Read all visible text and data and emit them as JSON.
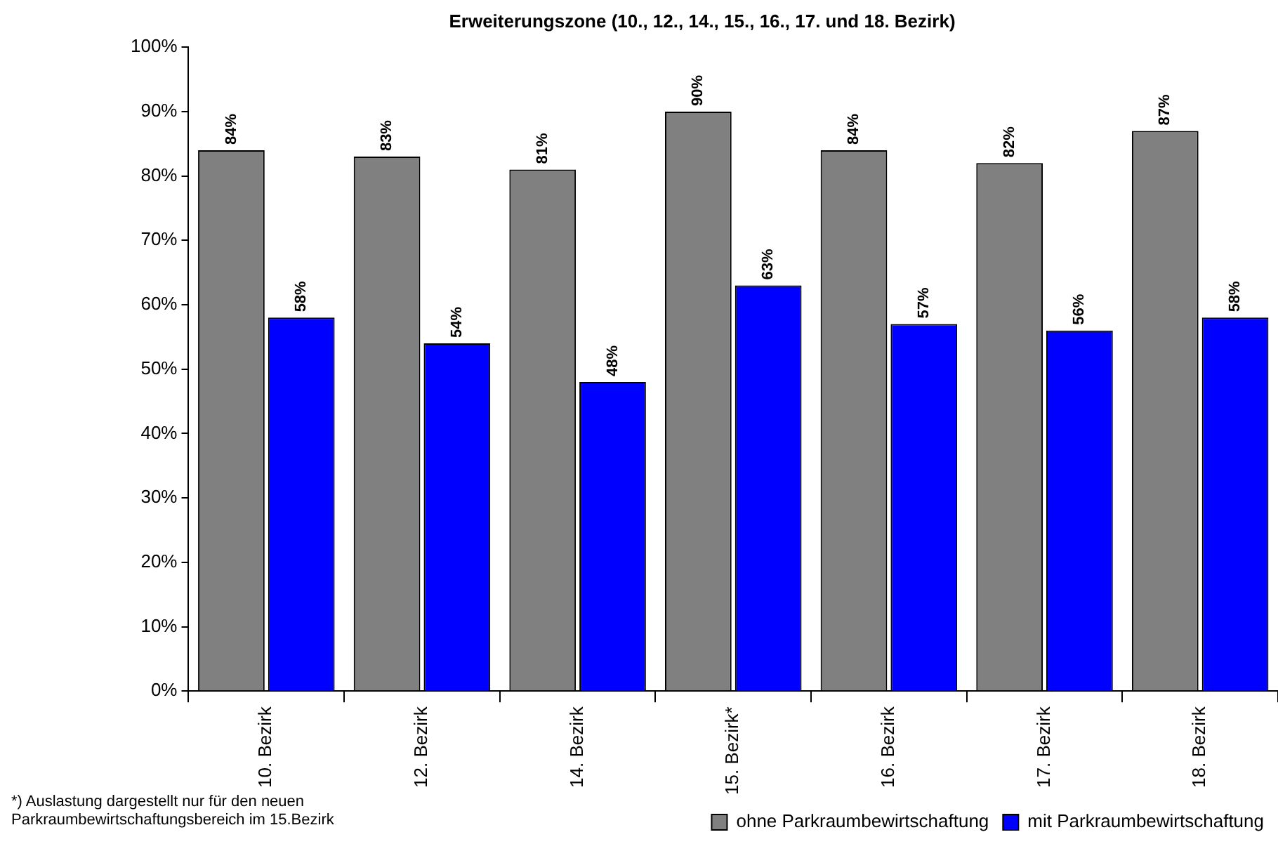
{
  "chart_data": {
    "type": "bar",
    "title": "Erweiterungszone (10., 12., 14., 15., 16., 17. und 18. Bezirk)",
    "categories": [
      "10. Bezirk",
      "12. Bezirk",
      "14. Bezirk",
      "15. Bezirk*",
      "16. Bezirk",
      "17. Bezirk",
      "18. Bezirk"
    ],
    "series": [
      {
        "name": "ohne Parkraumbewirtschaftung",
        "color": "#808080",
        "values": [
          84,
          83,
          81,
          90,
          84,
          82,
          87
        ],
        "value_labels": [
          "84%",
          "83%",
          "81%",
          "90%",
          "84%",
          "82%",
          "87%"
        ]
      },
      {
        "name": "mit Parkraumbewirtschaftung",
        "color": "#0000ff",
        "values": [
          58,
          54,
          48,
          63,
          57,
          56,
          58
        ],
        "value_labels": [
          "58%",
          "54%",
          "48%",
          "63%",
          "57%",
          "56%",
          "58%"
        ]
      }
    ],
    "ylim": [
      0,
      100
    ],
    "yticks": [
      {
        "value": 0,
        "label": "0%"
      },
      {
        "value": 10,
        "label": "10%"
      },
      {
        "value": 20,
        "label": "20%"
      },
      {
        "value": 30,
        "label": "30%"
      },
      {
        "value": 40,
        "label": "40%"
      },
      {
        "value": 50,
        "label": "50%"
      },
      {
        "value": 60,
        "label": "60%"
      },
      {
        "value": 70,
        "label": "70%"
      },
      {
        "value": 80,
        "label": "80%"
      },
      {
        "value": 90,
        "label": "90%"
      },
      {
        "value": 100,
        "label": "100%"
      }
    ],
    "legend": "bottom right",
    "annotations": [
      "*) Auslastung dargestellt nur für den neuen Parkraumbewirtschaftungsbereich im 15.Bezirk"
    ]
  }
}
